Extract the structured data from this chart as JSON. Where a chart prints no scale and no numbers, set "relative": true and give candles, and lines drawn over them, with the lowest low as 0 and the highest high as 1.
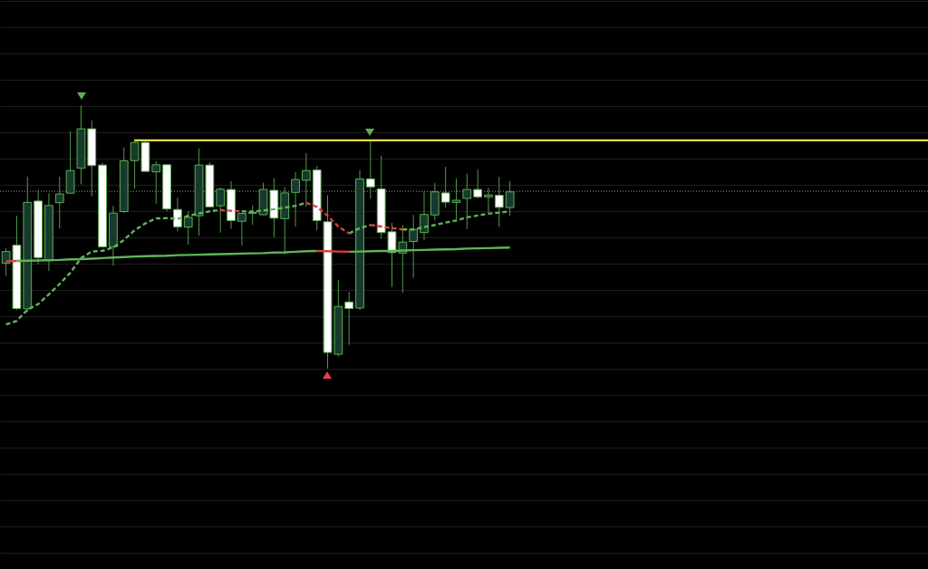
{
  "chart_data": {
    "type": "candlestick",
    "relative": true,
    "grid": "y",
    "categories": [
      null,
      null,
      null,
      null,
      null,
      null,
      null,
      null,
      null,
      null,
      null,
      null,
      null,
      null,
      null,
      null,
      null,
      null,
      null,
      null,
      null,
      null,
      null,
      null,
      null,
      null,
      null,
      null,
      null,
      null,
      null,
      null,
      null,
      null,
      null,
      null,
      null,
      null,
      null,
      null,
      null,
      null,
      null,
      null,
      null,
      null,
      null,
      null,
      null,
      null,
      null,
      null,
      null,
      null,
      null,
      null,
      null,
      null,
      null,
      null,
      null,
      null,
      null,
      null,
      null,
      null,
      null,
      null,
      null,
      null,
      null,
      null,
      null,
      null,
      null,
      null,
      null,
      null,
      null,
      null,
      null,
      null,
      null,
      null,
      null,
      null,
      null
    ],
    "ohlc": [
      [
        0.401,
        0.457,
        0.353,
        0.445
      ],
      [
        0.469,
        0.581,
        0.223,
        0.228
      ],
      [
        0.227,
        0.73,
        0.213,
        0.632
      ],
      [
        0.637,
        0.678,
        0.397,
        0.422
      ],
      [
        0.41,
        0.667,
        0.371,
        0.62
      ],
      [
        0.631,
        0.73,
        0.532,
        0.664
      ],
      [
        0.667,
        0.902,
        0.667,
        0.753
      ],
      [
        0.762,
        1.0,
        0.701,
        0.912
      ],
      [
        0.912,
        0.943,
        0.655,
        0.772
      ],
      [
        0.774,
        0.782,
        0.461,
        0.463
      ],
      [
        0.463,
        0.619,
        0.391,
        0.591
      ],
      [
        0.597,
        0.841,
        0.592,
        0.79
      ],
      [
        0.791,
        0.874,
        0.684,
        0.86
      ],
      [
        0.86,
        0.871,
        0.748,
        0.75
      ],
      [
        0.748,
        0.788,
        0.627,
        0.775
      ],
      [
        0.775,
        0.777,
        0.598,
        0.607
      ],
      [
        0.605,
        0.65,
        0.521,
        0.539
      ],
      [
        0.538,
        0.598,
        0.471,
        0.575
      ],
      [
        0.581,
        0.837,
        0.506,
        0.774
      ],
      [
        0.774,
        0.785,
        0.613,
        0.615
      ],
      [
        0.619,
        0.688,
        0.517,
        0.682
      ],
      [
        0.681,
        0.713,
        0.531,
        0.563
      ],
      [
        0.56,
        0.592,
        0.468,
        0.59
      ],
      [
        0.59,
        0.621,
        0.546,
        0.594
      ],
      [
        0.585,
        0.707,
        0.583,
        0.681
      ],
      [
        0.678,
        0.724,
        0.5,
        0.572
      ],
      [
        0.57,
        0.69,
        0.434,
        0.668
      ],
      [
        0.67,
        0.747,
        0.54,
        0.719
      ],
      [
        0.716,
        0.82,
        0.615,
        0.753
      ],
      [
        0.755,
        0.77,
        0.526,
        0.563
      ],
      [
        0.558,
        0.659,
        0,
        0.061
      ],
      [
        0.054,
        0.337,
        0.046,
        0.236
      ],
      [
        0.253,
        0.291,
        0.09,
        0.228
      ],
      [
        0.23,
        0.755,
        0.223,
        0.721
      ],
      [
        0.721,
        0.864,
        0.646,
        0.691
      ],
      [
        0.683,
        0.81,
        0.494,
        0.517
      ],
      [
        0.52,
        0.554,
        0.31,
        0.441
      ],
      [
        0.439,
        0.546,
        0.288,
        0.481
      ],
      [
        0.483,
        0.584,
        0.345,
        0.529
      ],
      [
        0.517,
        0.675,
        0.489,
        0.586
      ],
      [
        0.584,
        0.707,
        0.563,
        0.672
      ],
      [
        0.668,
        0.767,
        0.613,
        0.633
      ],
      [
        0.632,
        0.723,
        0.567,
        0.64
      ],
      [
        0.647,
        0.741,
        0.531,
        0.681
      ],
      [
        0.681,
        0.757,
        0.646,
        0.653
      ],
      [
        0.653,
        0.688,
        0.592,
        0.66
      ],
      [
        0.659,
        0.729,
        0.538,
        0.613
      ],
      [
        0.612,
        0.713,
        0.581,
        0.672
      ],
      null,
      null,
      null,
      null,
      null,
      null,
      null,
      null,
      null,
      null,
      null,
      null,
      null,
      null,
      null,
      null,
      null,
      null,
      null,
      null,
      null,
      null,
      null,
      null,
      null,
      null,
      null,
      null,
      null,
      null,
      null,
      null,
      null,
      null,
      null,
      null,
      null,
      null,
      null
    ],
    "colors": [
      "#173a2d",
      "#ffffff",
      "#173a2d",
      "#ffffff",
      "#173a2d",
      "#173a2d",
      "#173a2d",
      "#173a2d",
      "#ffffff",
      "#ffffff",
      "#173a2d",
      "#173a2d",
      "#173a2d",
      "#ffffff",
      "#173a2d",
      "#ffffff",
      "#ffffff",
      "#173a2d",
      "#173a2d",
      "#ffffff",
      "#173a2d",
      "#ffffff",
      "#173a2d",
      "#173a2d",
      "#173a2d",
      "#ffffff",
      "#173a2d",
      "#173a2d",
      "#173a2d",
      "#ffffff",
      "#ffffff",
      "#173a2d",
      "#ffffff",
      "#173a2d",
      "#ffffff",
      "#ffffff",
      "#ffffff",
      "#173a2d",
      "#173a2d",
      "#173a2d",
      "#173a2d",
      "#ffffff",
      "#173a2d",
      "#173a2d",
      "#ffffff",
      "#173a2d",
      "#ffffff",
      "#173a2d",
      null,
      null,
      null,
      null,
      null,
      null,
      null,
      null,
      null,
      null,
      null,
      null,
      null,
      null,
      null,
      null,
      null,
      null,
      null,
      null,
      null,
      null,
      null,
      null,
      null,
      null,
      null,
      null,
      null,
      null,
      null,
      null,
      null,
      null,
      null,
      null,
      null,
      null,
      null
    ],
    "series": [
      {
        "type": "line",
        "color": "#e8d64a",
        "line_style": "solid",
        "values": [
          null,
          null,
          null,
          null,
          null,
          null,
          null,
          null,
          null,
          null,
          null,
          null,
          0.868,
          0.868,
          0.868,
          0.868,
          0.868,
          0.868,
          0.868,
          0.868,
          0.868,
          0.868,
          0.868,
          0.868,
          0.868,
          0.868,
          0.868,
          0.868,
          0.868,
          0.868,
          0.868,
          0.868,
          0.868,
          0.868,
          0.868,
          0.868,
          0.868,
          0.868,
          0.868,
          0.868,
          0.868,
          0.868,
          0.868,
          0.868,
          0.868,
          0.868,
          0.868,
          0.868,
          0.868,
          0.868,
          0.868,
          0.868,
          0.868,
          0.868,
          0.868,
          0.868,
          0.868,
          0.868,
          0.868,
          0.868,
          0.868,
          0.868,
          0.868,
          0.868,
          0.868,
          0.868,
          0.868,
          0.868,
          0.868,
          0.868,
          0.868,
          0.868,
          0.868,
          0.868,
          0.868,
          0.868,
          0.868,
          0.868,
          0.868,
          0.868,
          0.868,
          0.868,
          0.868,
          0.868,
          0.868,
          0.868,
          0.868
        ]
      },
      {
        "type": "line",
        "color": "#5fb458",
        "line_style": "solid",
        "values": [
          null,
          0.409,
          0.41,
          0.411,
          0.412,
          0.413,
          0.415,
          0.416,
          0.418,
          0.42,
          0.422,
          0.424,
          0.426,
          0.427,
          0.428,
          0.429,
          0.431,
          0.432,
          0.433,
          0.434,
          0.435,
          0.436,
          0.437,
          0.438,
          0.439,
          0.441,
          0.442,
          0.444,
          0.446,
          0.447,
          null,
          null,
          0.444,
          0.445,
          0.446,
          0.447,
          0.447,
          0.449,
          0.45,
          0.451,
          0.452,
          0.453,
          0.454,
          0.456,
          0.457,
          0.458,
          0.459,
          0.46,
          null,
          null,
          null,
          null,
          null,
          null,
          null,
          null,
          null,
          null,
          null,
          null,
          null,
          null,
          null,
          null,
          null,
          null,
          null,
          null,
          null,
          null,
          null,
          null,
          null,
          null,
          null,
          null,
          null,
          null,
          null,
          null,
          null,
          null,
          null,
          null,
          null,
          null,
          null
        ]
      },
      {
        "type": "line",
        "color": "#e03c3c",
        "line_style": "solid",
        "values": [
          0.408,
          0.409,
          null,
          null,
          null,
          null,
          null,
          null,
          null,
          null,
          null,
          null,
          null,
          null,
          null,
          null,
          null,
          null,
          null,
          null,
          null,
          null,
          null,
          null,
          null,
          null,
          null,
          null,
          null,
          0.447,
          0.446,
          0.445,
          0.444,
          null,
          null,
          null,
          null,
          null,
          null,
          null,
          null,
          null,
          null,
          null,
          null,
          null,
          null,
          null,
          null,
          null,
          null,
          null,
          null,
          null,
          null,
          null,
          null,
          null,
          null,
          null,
          null,
          null,
          null,
          null,
          null,
          null,
          null,
          null,
          null,
          null,
          null,
          null,
          null,
          null,
          null,
          null,
          null,
          null,
          null,
          null,
          null,
          null,
          null,
          null,
          null,
          null,
          null
        ]
      },
      {
        "type": "line",
        "color": "#5fb458",
        "line_style": "dashed",
        "values": [
          0.167,
          0.181,
          0.224,
          0.245,
          0.282,
          0.322,
          0.364,
          0.42,
          0.445,
          0.448,
          0.46,
          0.489,
          0.526,
          0.552,
          0.571,
          0.572,
          0.569,
          0.581,
          0.59,
          0.598,
          0.603,
          null,
          0.598,
          0.597,
          0.601,
          0.606,
          0.612,
          0.619,
          0.63,
          null,
          null,
          null,
          0.514,
          0.534,
          0.546,
          null,
          null,
          0.529,
          0.529,
          0.538,
          0.546,
          0.555,
          0.563,
          0.575,
          0.582,
          0.589,
          0.593,
          0.598,
          null,
          null,
          null,
          null,
          null,
          null,
          null,
          null,
          null,
          null,
          null,
          null,
          null,
          null,
          null,
          null,
          null,
          null,
          null,
          null,
          null,
          null,
          null,
          null,
          null,
          null,
          null,
          null,
          null,
          null,
          null,
          null,
          null,
          null,
          null,
          null,
          null,
          null,
          null
        ]
      },
      {
        "type": "line",
        "color": "#e03c3c",
        "line_style": "dashed",
        "values": [
          null,
          null,
          null,
          null,
          null,
          null,
          null,
          null,
          null,
          null,
          null,
          null,
          null,
          null,
          null,
          null,
          null,
          null,
          null,
          null,
          0.603,
          0.6,
          0.598,
          null,
          null,
          null,
          null,
          null,
          0.63,
          0.615,
          0.581,
          0.54,
          0.514,
          null,
          0.546,
          0.54,
          0.534,
          0.529,
          null,
          null,
          null,
          null,
          null,
          null,
          null,
          null,
          null,
          null,
          null,
          null,
          null,
          null,
          null,
          null,
          null,
          null,
          null,
          null,
          null,
          null,
          null,
          null,
          null,
          null,
          null,
          null,
          null,
          null,
          null,
          null,
          null,
          null,
          null,
          null,
          null,
          null,
          null,
          null,
          null,
          null,
          null,
          null,
          null,
          null,
          null,
          null,
          null
        ]
      }
    ],
    "ref_lines": [
      {
        "axis": "y",
        "value": 0.674,
        "color": "#9a9a9a",
        "line_style": "dotted"
      }
    ]
  }
}
